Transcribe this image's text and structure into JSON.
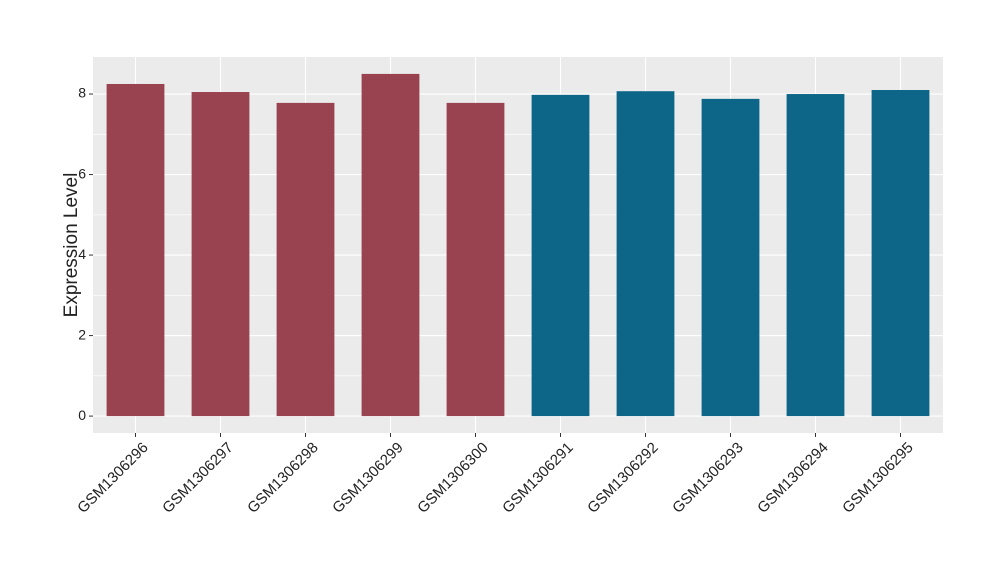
{
  "chart_data": {
    "type": "bar",
    "y_label": "Expression Level",
    "categories": [
      "GSM1306296",
      "GSM1306297",
      "GSM1306298",
      "GSM1306299",
      "GSM1306300",
      "GSM1306291",
      "GSM1306292",
      "GSM1306293",
      "GSM1306294",
      "GSM1306295"
    ],
    "values": [
      8.25,
      8.05,
      7.78,
      8.5,
      7.78,
      7.98,
      8.07,
      7.88,
      8.0,
      8.1
    ],
    "colors": [
      "#9a4350",
      "#9a4350",
      "#9a4350",
      "#9a4350",
      "#9a4350",
      "#0d6587",
      "#0d6587",
      "#0d6587",
      "#0d6587",
      "#0d6587"
    ],
    "ylim": [
      -0.42,
      8.92
    ],
    "yticks": [
      0,
      2,
      4,
      6,
      8
    ],
    "grid": true
  }
}
